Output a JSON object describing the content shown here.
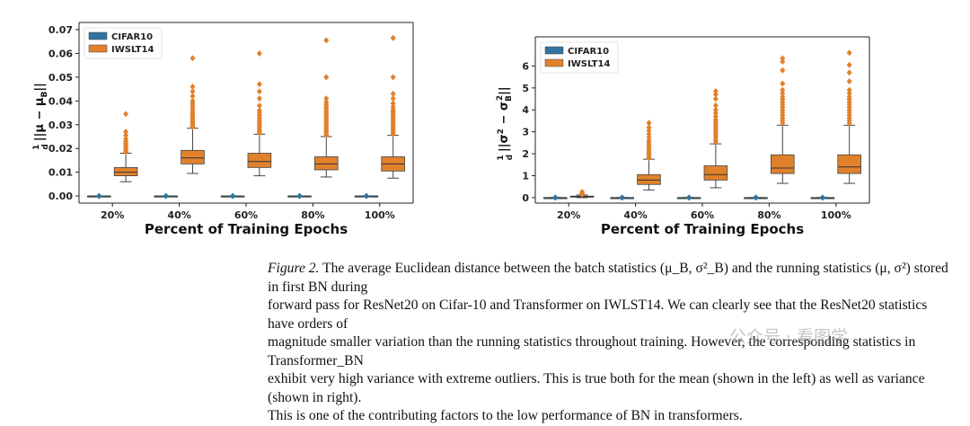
{
  "colors": {
    "cifar": "#3274a1",
    "iwslt": "#e1812c",
    "median": "#333333"
  },
  "chart_data": [
    {
      "type": "boxplot",
      "ylabel_parts": [
        "1",
        "d",
        "||μ − μ",
        "B",
        "||"
      ],
      "xlabel": "Percent of Training Epochs",
      "categories": [
        "20%",
        "40%",
        "60%",
        "80%",
        "100%"
      ],
      "ylim": [
        -0.003,
        0.07
      ],
      "yticks": [
        0.0,
        0.01,
        0.02,
        0.03,
        0.04,
        0.05,
        0.06,
        0.07
      ],
      "ytick_labels": [
        "0.00",
        "0.01",
        "0.02",
        "0.03",
        "0.04",
        "0.05",
        "0.06",
        "0.07"
      ],
      "legend": [
        "CIFAR10",
        "IWSLT14"
      ],
      "series": [
        {
          "name": "CIFAR10",
          "boxes": [
            {
              "q1": 0,
              "median": 0,
              "q3": 0,
              "whislo": 0,
              "whishi": 0,
              "outliers": []
            },
            {
              "q1": 0,
              "median": 0,
              "q3": 0,
              "whislo": 0,
              "whishi": 0,
              "outliers": []
            },
            {
              "q1": 0,
              "median": 0,
              "q3": 0,
              "whislo": 0,
              "whishi": 0,
              "outliers": []
            },
            {
              "q1": 0,
              "median": 0,
              "q3": 0,
              "whislo": 0,
              "whishi": 0,
              "outliers": []
            },
            {
              "q1": 0,
              "median": 0,
              "q3": 0,
              "whislo": 0,
              "whishi": 0,
              "outliers": []
            }
          ]
        },
        {
          "name": "IWSLT14",
          "boxes": [
            {
              "q1": 0.0085,
              "median": 0.01,
              "q3": 0.012,
              "whislo": 0.006,
              "whishi": 0.018,
              "outliers": [
                0.0185,
                0.0192,
                0.02,
                0.0208,
                0.0215,
                0.0222,
                0.023,
                0.024,
                0.0255,
                0.027,
                0.0345
              ]
            },
            {
              "q1": 0.0135,
              "median": 0.016,
              "q3": 0.0192,
              "whislo": 0.0095,
              "whishi": 0.0285,
              "outliers": [
                0.029,
                0.0298,
                0.0305,
                0.0312,
                0.032,
                0.0328,
                0.0336,
                0.0345,
                0.0352,
                0.036,
                0.037,
                0.038,
                0.039,
                0.04,
                0.042,
                0.044,
                0.046,
                0.058
              ]
            },
            {
              "q1": 0.012,
              "median": 0.0145,
              "q3": 0.018,
              "whislo": 0.0085,
              "whishi": 0.026,
              "outliers": [
                0.0265,
                0.0272,
                0.028,
                0.0288,
                0.0296,
                0.0304,
                0.0312,
                0.032,
                0.033,
                0.034,
                0.035,
                0.036,
                0.038,
                0.041,
                0.044,
                0.047,
                0.06
              ]
            },
            {
              "q1": 0.011,
              "median": 0.0135,
              "q3": 0.0165,
              "whislo": 0.008,
              "whishi": 0.025,
              "outliers": [
                0.0255,
                0.0262,
                0.027,
                0.0278,
                0.0286,
                0.0294,
                0.0302,
                0.031,
                0.0318,
                0.0326,
                0.0334,
                0.0342,
                0.035,
                0.0358,
                0.0366,
                0.0374,
                0.0385,
                0.0395,
                0.041,
                0.05,
                0.0655
              ]
            },
            {
              "q1": 0.0105,
              "median": 0.0135,
              "q3": 0.0165,
              "whislo": 0.0075,
              "whishi": 0.0255,
              "outliers": [
                0.026,
                0.0268,
                0.0276,
                0.0284,
                0.0292,
                0.03,
                0.0308,
                0.0316,
                0.0324,
                0.0332,
                0.034,
                0.0348,
                0.0356,
                0.0364,
                0.0375,
                0.039,
                0.041,
                0.043,
                0.05,
                0.0665
              ]
            }
          ]
        }
      ]
    },
    {
      "type": "boxplot",
      "ylabel_parts": [
        "1",
        "d",
        "||σ",
        "2",
        " − σ",
        "B",
        "2",
        "||"
      ],
      "xlabel": "Percent of Training Epochs",
      "categories": [
        "20%",
        "40%",
        "60%",
        "80%",
        "100%"
      ],
      "ylim": [
        -0.25,
        7.0
      ],
      "yticks": [
        0,
        1,
        2,
        3,
        4,
        5,
        6
      ],
      "ytick_labels": [
        "0",
        "1",
        "2",
        "3",
        "4",
        "5",
        "6"
      ],
      "legend": [
        "CIFAR10",
        "IWSLT14"
      ],
      "series": [
        {
          "name": "CIFAR10",
          "boxes": [
            {
              "q1": 0,
              "median": 0,
              "q3": 0,
              "whislo": 0,
              "whishi": 0,
              "outliers": []
            },
            {
              "q1": 0,
              "median": 0,
              "q3": 0,
              "whislo": 0,
              "whishi": 0,
              "outliers": []
            },
            {
              "q1": 0,
              "median": 0,
              "q3": 0,
              "whislo": 0,
              "whishi": 0,
              "outliers": []
            },
            {
              "q1": 0,
              "median": 0,
              "q3": 0,
              "whislo": 0,
              "whishi": 0,
              "outliers": []
            },
            {
              "q1": 0,
              "median": 0,
              "q3": 0,
              "whislo": 0,
              "whishi": 0,
              "outliers": []
            }
          ]
        },
        {
          "name": "IWSLT14",
          "boxes": [
            {
              "q1": 0.03,
              "median": 0.05,
              "q3": 0.07,
              "whislo": 0.0,
              "whishi": 0.12,
              "outliers": [
                0.15,
                0.18,
                0.22,
                0.26
              ]
            },
            {
              "q1": 0.6,
              "median": 0.8,
              "q3": 1.05,
              "whislo": 0.35,
              "whishi": 1.75,
              "outliers": [
                1.8,
                1.88,
                1.96,
                2.04,
                2.12,
                2.2,
                2.3,
                2.4,
                2.5,
                2.6,
                2.75,
                2.9,
                3.05,
                3.2,
                3.4
              ]
            },
            {
              "q1": 0.8,
              "median": 1.05,
              "q3": 1.45,
              "whislo": 0.45,
              "whishi": 2.45,
              "outliers": [
                2.55,
                2.65,
                2.75,
                2.85,
                2.95,
                3.05,
                3.15,
                3.25,
                3.35,
                3.45,
                3.55,
                3.7,
                3.85,
                4.0,
                4.2,
                4.5,
                4.7,
                4.85
              ]
            },
            {
              "q1": 1.1,
              "median": 1.35,
              "q3": 1.95,
              "whislo": 0.65,
              "whishi": 3.3,
              "outliers": [
                3.4,
                3.52,
                3.64,
                3.76,
                3.88,
                4.0,
                4.12,
                4.24,
                4.36,
                4.48,
                4.6,
                4.75,
                4.9,
                5.2,
                5.8,
                6.2,
                6.35
              ]
            },
            {
              "q1": 1.1,
              "median": 1.4,
              "q3": 1.95,
              "whislo": 0.65,
              "whishi": 3.3,
              "outliers": [
                3.4,
                3.52,
                3.64,
                3.76,
                3.88,
                4.0,
                4.12,
                4.24,
                4.36,
                4.48,
                4.6,
                4.75,
                4.9,
                5.3,
                5.7,
                6.05,
                6.6
              ]
            }
          ]
        }
      ]
    }
  ],
  "caption": {
    "figure_label": "Figure 2.",
    "lines": [
      " The average Euclidean distance between the batch statistics (μ_B, σ²_B) and the running statistics (μ, σ²) stored in first BN during",
      "forward pass for ResNet20 on Cifar-10 and Transformer on IWLST14. We can clearly see that the ResNet20 statistics have orders of",
      "magnitude smaller variation than the running statistics throughout training. However, the corresponding statistics in Transformer_BN",
      "exhibit very high variance with extreme outliers. This is true both for the mean (shown in the left) as well as variance (shown in right).",
      "This is one of the contributing factors to the low performance of BN in transformers."
    ]
  },
  "watermark": "公众号 · 看图学"
}
